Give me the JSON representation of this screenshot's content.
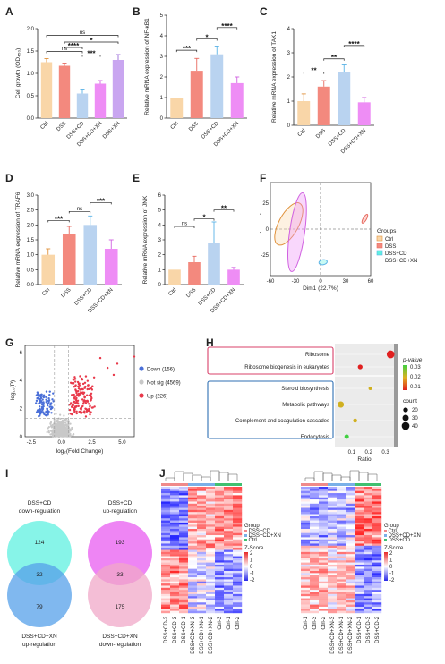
{
  "panel_labels": [
    "A",
    "B",
    "C",
    "D",
    "E",
    "F",
    "G",
    "H",
    "I",
    "J"
  ],
  "colors": {
    "ctrl": "#f9d6a8",
    "dss": "#f3897e",
    "dss_cd": "#b9d3f0",
    "dss_cd_xn": "#ee8df5",
    "dss_xn": "#c9a6f0",
    "ctrl_line": "#e0913b",
    "dss_line": "#e8695f",
    "dss_cd_line": "#5ab3e6",
    "dss_cd_xn_line": "#d060e0",
    "up": "#e8394a",
    "down": "#4a6fd8",
    "notsig": "#c8c8c8",
    "cyan": "#5ff0e0",
    "blue": "#55a0ea",
    "magenta": "#e85cf0",
    "pink": "#f0a8c8"
  },
  "chart_data": [
    {
      "panel": "A",
      "type": "bar",
      "categories": [
        "Ctrl",
        "DSS",
        "DSS+CD",
        "DSS+CD+XN",
        "DSS+XN"
      ],
      "values": [
        1.25,
        1.17,
        0.55,
        0.77,
        1.3
      ],
      "errors": [
        0.08,
        0.06,
        0.08,
        0.07,
        0.12
      ],
      "ylabel": "Cell growth (OD₄₅₀)",
      "ylim": [
        0,
        2.0
      ],
      "yticks": [
        "0.0",
        "0.5",
        "1.0",
        "1.5",
        "2.0"
      ],
      "significance": [
        {
          "label": "ns",
          "from": 0,
          "to": 4,
          "level": 1.85
        },
        {
          "label": "*",
          "from": 1,
          "to": 4,
          "level": 1.7
        },
        {
          "label": "ns",
          "from": 0,
          "to": 2,
          "level": 1.49
        },
        {
          "label": "****",
          "from": 1,
          "to": 2,
          "level": 1.58
        },
        {
          "label": "***",
          "from": 2,
          "to": 3,
          "level": 1.41
        }
      ]
    },
    {
      "panel": "B",
      "type": "bar",
      "categories": [
        "Ctrl",
        "DSS",
        "DSS+CD",
        "DSS+CD+XN"
      ],
      "values": [
        1.0,
        2.3,
        3.1,
        1.7
      ],
      "errors": [
        0.0,
        0.6,
        0.4,
        0.3
      ],
      "ylabel": "Relative mRNA expression of  NF-κB1",
      "ylim": [
        0,
        5
      ],
      "yticks": [
        "0",
        "1",
        "2",
        "3",
        "4",
        "5"
      ],
      "significance": [
        {
          "label": "***",
          "from": 0,
          "to": 1,
          "level": 3.3
        },
        {
          "label": "*",
          "from": 1,
          "to": 2,
          "level": 3.85
        },
        {
          "label": "****",
          "from": 2,
          "to": 3,
          "level": 4.4
        }
      ]
    },
    {
      "panel": "C",
      "type": "bar",
      "categories": [
        "Ctrl",
        "DSS",
        "DSS+CD",
        "DSS+CD+XN"
      ],
      "values": [
        1.0,
        1.6,
        2.2,
        0.95
      ],
      "errors": [
        0.3,
        0.25,
        0.3,
        0.2
      ],
      "ylabel": "Relative mRNA expression of  TAK1",
      "ylim": [
        0,
        4
      ],
      "yticks": [
        "0",
        "1",
        "2",
        "3",
        "4"
      ],
      "significance": [
        {
          "label": "**",
          "from": 0,
          "to": 1,
          "level": 2.2
        },
        {
          "label": "**",
          "from": 1,
          "to": 2,
          "level": 2.75
        },
        {
          "label": "****",
          "from": 2,
          "to": 3,
          "level": 3.3
        }
      ]
    },
    {
      "panel": "D",
      "type": "bar",
      "categories": [
        "Ctrl",
        "DSS",
        "DSS+CD",
        "DSS+CD+XN"
      ],
      "values": [
        1.0,
        1.7,
        2.0,
        1.2
      ],
      "errors": [
        0.2,
        0.25,
        0.3,
        0.3
      ],
      "ylabel": "Relative mRNA expression of  TRAF6",
      "ylim": [
        0,
        3.0
      ],
      "yticks": [
        "0.0",
        "0.5",
        "1.0",
        "1.5",
        "2.0",
        "2.5",
        "3.0"
      ],
      "significance": [
        {
          "label": "***",
          "from": 0,
          "to": 1,
          "level": 2.15
        },
        {
          "label": "ns",
          "from": 1,
          "to": 2,
          "level": 2.45
        },
        {
          "label": "***",
          "from": 2,
          "to": 3,
          "level": 2.75
        }
      ]
    },
    {
      "panel": "E",
      "type": "bar",
      "categories": [
        "Ctrl",
        "DSS",
        "DSS+CD",
        "DSS+CD+XN"
      ],
      "values": [
        1.0,
        1.5,
        2.8,
        1.0
      ],
      "errors": [
        0.0,
        0.4,
        1.4,
        0.15
      ],
      "ylabel": "Relative mRNA expression of  JNK",
      "ylim": [
        0,
        6
      ],
      "yticks": [
        "0",
        "1",
        "2",
        "3",
        "4",
        "5",
        "6"
      ],
      "significance": [
        {
          "label": "ns",
          "from": 0,
          "to": 1,
          "level": 3.9
        },
        {
          "label": "*",
          "from": 1,
          "to": 2,
          "level": 4.4
        },
        {
          "label": "**",
          "from": 2,
          "to": 3,
          "level": 5.0
        }
      ]
    },
    {
      "panel": "F",
      "type": "scatter",
      "xlabel": "Dim1 (22.7%)",
      "ylabel": "Dim (13.3%)",
      "xlim": [
        -60,
        60
      ],
      "ylim": [
        -45,
        45
      ],
      "xticks": [
        "-60",
        "-30",
        "0",
        "30",
        "60"
      ],
      "yticks": [
        "-25",
        "0",
        "25"
      ],
      "legend_title": "Groups",
      "series": [
        {
          "name": "Ctrl",
          "ellipse": {
            "cx": -38,
            "cy": 5,
            "rx": 28,
            "ry": 6,
            "angle": -62
          }
        },
        {
          "name": "DSS",
          "ellipse": {
            "cx": 53,
            "cy": 10,
            "rx": 6,
            "ry": 1,
            "angle": -60
          }
        },
        {
          "name": "DSS+CD",
          "ellipse": {
            "cx": 3,
            "cy": -32,
            "rx": 5,
            "ry": 1.5,
            "angle": -10
          }
        },
        {
          "name": "DSS+CD+XN",
          "ellipse": {
            "cx": -28,
            "cy": -3,
            "rx": 9,
            "ry": 24,
            "angle": 8
          }
        }
      ]
    },
    {
      "panel": "G",
      "type": "scatter",
      "xlabel": "log₂(Fold Change)",
      "ylabel": "-log₁₀(P)",
      "xlim": [
        -3,
        6
      ],
      "ylim": [
        0,
        6.5
      ],
      "xticks": [
        "-2.5",
        "0.0",
        "2.5",
        "5.0"
      ],
      "yticks": [
        "0",
        "2",
        "4",
        "6"
      ],
      "legend": [
        {
          "name": "Down",
          "count": "(156)"
        },
        {
          "name": "Not sig",
          "count": "(4569)"
        },
        {
          "name": "Up",
          "count": "(226)"
        }
      ]
    },
    {
      "panel": "H",
      "type": "scatter",
      "xlabel": "Ratio",
      "xlim": [
        0,
        0.35
      ],
      "xticks": [
        "0.1",
        "0.2",
        "0.3"
      ],
      "pathways": [
        {
          "name": "Ribosome",
          "ratio": 0.33,
          "count": 40,
          "pvalue": 0.005
        },
        {
          "name": "Ribosome biogenesis in eukaryotes",
          "ratio": 0.15,
          "count": 20,
          "pvalue": 0.01
        },
        {
          "name": "Steroid biosynthesis",
          "ratio": 0.21,
          "count": 12,
          "pvalue": 0.025
        },
        {
          "name": "Metabolic pathways",
          "ratio": 0.035,
          "count": 30,
          "pvalue": 0.022
        },
        {
          "name": "Complement and coagulation cascades",
          "ratio": 0.12,
          "count": 15,
          "pvalue": 0.024
        },
        {
          "name": "Endocytosis",
          "ratio": 0.07,
          "count": 18,
          "pvalue": 0.03
        }
      ],
      "color_legend_title": "p-value",
      "color_ticks": [
        "0.03",
        "0.02",
        "0.01"
      ],
      "size_legend_title": "count",
      "size_ticks": [
        "20",
        "30",
        "40"
      ]
    },
    {
      "panel": "I",
      "type": "venn",
      "left": {
        "top_label": "DSS+CD\ndown-regulation",
        "bottom_label": "DSS+CD+XN\nup-regulation",
        "a": "124",
        "ab": "32",
        "b": "79"
      },
      "right": {
        "top_label": "DSS+CD\nup-regulation",
        "bottom_label": "DSS+CD+XN\ndown-regulation",
        "a": "193",
        "ab": "33",
        "b": "175"
      }
    },
    {
      "panel": "J",
      "type": "heatmap",
      "left": {
        "columns": [
          "DSS+CD-2",
          "DSS+CD-3",
          "DSS+CD-1",
          "DSS+CD+XN-3",
          "DSS+CD+XN-1",
          "DSS+CD+XN-2",
          "Ctrl-3",
          "Ctrl-1",
          "Ctrl-2"
        ],
        "legend_title": "Group",
        "legend_items": [
          "DSS+CD",
          "DSS+CD+XN",
          "Ctrl"
        ],
        "zscore_title": "Z-Score",
        "zscore_ticks": [
          "2",
          "1",
          "0",
          "-1",
          "-2"
        ]
      },
      "right": {
        "columns": [
          "Ctrl-1",
          "Ctrl-3",
          "Ctrl-2",
          "DSS+CD+XN-3",
          "DSS+CD+XN-1",
          "DSS+CD+XN-2",
          "DSS+CD-1",
          "DSS+CD-3",
          "DSS+CD-2"
        ],
        "legend_title": "Group",
        "legend_items": [
          "Ctrl",
          "DSS+CD+XN",
          "DSS+CD"
        ],
        "zscore_title": "Z-Score",
        "zscore_ticks": [
          "2",
          "1",
          "0",
          "-1",
          "-2"
        ]
      }
    }
  ]
}
